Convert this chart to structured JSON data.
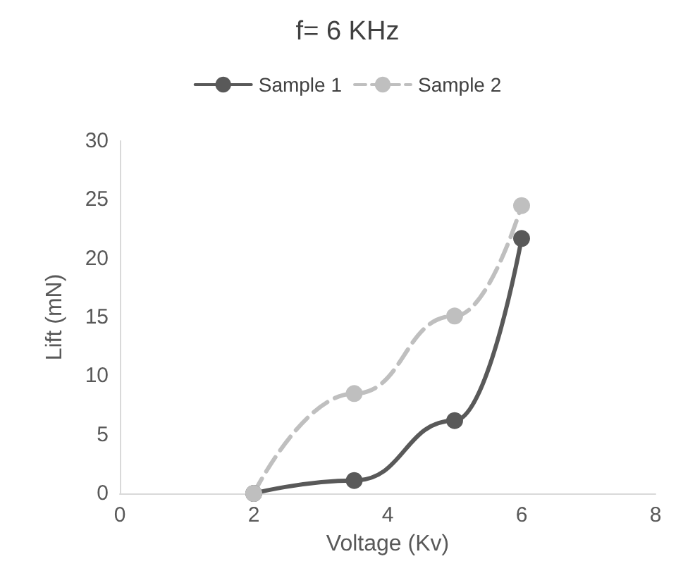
{
  "chart_data": {
    "type": "line",
    "title": "f= 6 KHz",
    "xlabel": "Voltage (Kv)",
    "ylabel": "Lift (mN)",
    "x": [
      2,
      3.5,
      5,
      6
    ],
    "series": [
      {
        "name": "Sample 1",
        "color": "#595959",
        "values": [
          0,
          1.1,
          6.2,
          21.7
        ],
        "line_style": "solid"
      },
      {
        "name": "Sample 2",
        "color": "#bfbfbf",
        "values": [
          0,
          8.5,
          15.1,
          24.5
        ],
        "line_style": "dashed"
      }
    ],
    "xlim": [
      0,
      8
    ],
    "xticks": [
      0,
      2,
      4,
      6,
      8
    ],
    "ylim": [
      0,
      30
    ],
    "yticks": [
      0,
      5,
      10,
      15,
      20,
      25,
      30
    ],
    "grid": false,
    "legend": "top",
    "marker": "circle"
  }
}
